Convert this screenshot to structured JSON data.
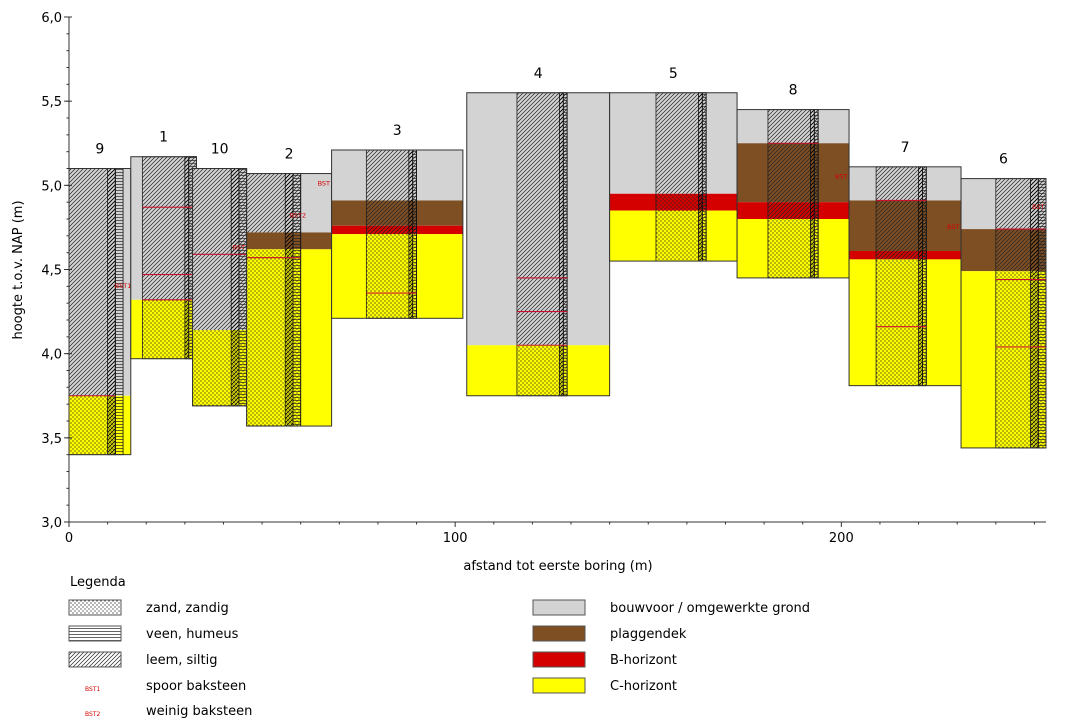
{
  "chart_data": {
    "type": "soil-profile",
    "xlabel": "afstand tot eerste boring (m)",
    "ylabel": "hoogte t.o.v. NAP (m)",
    "xlim": [
      0,
      253
    ],
    "ylim": [
      3.0,
      6.0
    ],
    "x_ticks": [
      0,
      100,
      200
    ],
    "x_tick_labels": [
      "0",
      "100",
      "200"
    ],
    "y_ticks": [
      3.0,
      3.5,
      4.0,
      4.5,
      5.0,
      5.5,
      6.0
    ],
    "y_tick_labels": [
      "3,0",
      "3,5",
      "4,0",
      "4,5",
      "5,0",
      "5,5",
      "6,0"
    ],
    "horizon_colors": {
      "bouwvoor": "#d3d3d3",
      "plaggendek": "#7f4f24",
      "B": "#d40000",
      "C": "#ffff00"
    },
    "borings": [
      {
        "label": "9",
        "bar": [
          0,
          16
        ],
        "core": [
          0,
          12
        ],
        "strips": [
          [
            10,
            12
          ],
          [
            12,
            14
          ]
        ],
        "layers": [
          {
            "h": "bouwvoor",
            "top": 5.1,
            "bottom": 3.75
          },
          {
            "h": "C",
            "top": 3.75,
            "bottom": 3.4
          }
        ],
        "texture": [
          {
            "t": "zand",
            "top": 3.75,
            "bottom": 3.4
          },
          {
            "t": "leem",
            "top": 5.1,
            "bottom": 3.75
          }
        ],
        "marks": [
          {
            "y": 3.75
          }
        ],
        "bst": [
          {
            "label": "BST1",
            "y": 4.39
          }
        ]
      },
      {
        "label": "1",
        "bar": [
          16,
          33
        ],
        "core": [
          19,
          33
        ],
        "strips": [
          [
            30,
            31
          ],
          [
            31,
            33
          ]
        ],
        "layers": [
          {
            "h": "bouwvoor",
            "top": 5.17,
            "bottom": 4.32
          },
          {
            "h": "C",
            "top": 4.32,
            "bottom": 3.97
          }
        ],
        "texture": [
          {
            "t": "zand",
            "top": 4.32,
            "bottom": 3.97
          },
          {
            "t": "leem",
            "top": 5.17,
            "bottom": 4.32
          }
        ],
        "marks": [
          {
            "y": 4.87
          },
          {
            "y": 4.47
          },
          {
            "y": 4.32
          }
        ],
        "bst": []
      },
      {
        "label": "10",
        "bar": [
          32,
          46
        ],
        "core": [
          32,
          46
        ],
        "strips": [
          [
            42,
            44
          ],
          [
            44,
            46
          ]
        ],
        "layers": [
          {
            "h": "bouwvoor",
            "top": 5.1,
            "bottom": 4.14
          },
          {
            "h": "C",
            "top": 4.14,
            "bottom": 3.69
          }
        ],
        "texture": [
          {
            "t": "zand",
            "top": 4.14,
            "bottom": 3.69
          },
          {
            "t": "leem",
            "top": 5.1,
            "bottom": 4.14
          }
        ],
        "marks": [
          {
            "y": 4.59
          }
        ],
        "bst": [
          {
            "label": "BST1",
            "y": 4.62
          }
        ]
      },
      {
        "label": "2",
        "bar": [
          46,
          68
        ],
        "core": [
          46,
          60
        ],
        "strips": [
          [
            56,
            58
          ],
          [
            58,
            60
          ]
        ],
        "layers": [
          {
            "h": "bouwvoor",
            "top": 5.07,
            "bottom": 4.72
          },
          {
            "h": "plaggendek",
            "top": 4.72,
            "bottom": 4.62
          },
          {
            "h": "C",
            "top": 4.62,
            "bottom": 3.57
          }
        ],
        "texture": [
          {
            "t": "zand",
            "top": 4.62,
            "bottom": 3.57
          },
          {
            "t": "leem",
            "top": 5.07,
            "bottom": 4.72
          }
        ],
        "marks": [
          {
            "y": 4.57
          }
        ],
        "bst": [
          {
            "label": "BST1",
            "y": 5.0
          },
          {
            "label": "BST2",
            "y": 4.81
          }
        ]
      },
      {
        "label": "3",
        "bar": [
          68,
          102
        ],
        "core": [
          77,
          90
        ],
        "strips": [
          [
            88,
            89
          ],
          [
            89,
            90
          ]
        ],
        "layers": [
          {
            "h": "bouwvoor",
            "top": 5.21,
            "bottom": 4.91
          },
          {
            "h": "plaggendek",
            "top": 4.91,
            "bottom": 4.76
          },
          {
            "h": "B",
            "top": 4.76,
            "bottom": 4.71
          },
          {
            "h": "C",
            "top": 4.71,
            "bottom": 4.21
          }
        ],
        "texture": [
          {
            "t": "zand",
            "top": 4.71,
            "bottom": 4.21
          },
          {
            "t": "leem",
            "top": 5.21,
            "bottom": 4.71
          }
        ],
        "marks": [
          {
            "y": 4.36
          }
        ],
        "bst": []
      },
      {
        "label": "4",
        "bar": [
          103,
          140
        ],
        "core": [
          116,
          129
        ],
        "strips": [
          [
            127,
            128
          ],
          [
            128,
            129
          ]
        ],
        "layers": [
          {
            "h": "bouwvoor",
            "top": 5.55,
            "bottom": 4.05
          },
          {
            "h": "C",
            "top": 4.05,
            "bottom": 3.75
          }
        ],
        "texture": [
          {
            "t": "zand",
            "top": 4.05,
            "bottom": 3.75
          },
          {
            "t": "leem",
            "top": 5.55,
            "bottom": 4.05
          }
        ],
        "marks": [
          {
            "y": 4.45
          },
          {
            "y": 4.25
          },
          {
            "y": 4.05
          }
        ],
        "bst": []
      },
      {
        "label": "5",
        "bar": [
          140,
          173
        ],
        "core": [
          152,
          165
        ],
        "strips": [
          [
            163,
            164
          ],
          [
            164,
            165
          ]
        ],
        "layers": [
          {
            "h": "bouwvoor",
            "top": 5.55,
            "bottom": 4.95
          },
          {
            "h": "B",
            "top": 4.95,
            "bottom": 4.85
          },
          {
            "h": "C",
            "top": 4.85,
            "bottom": 4.55
          }
        ],
        "texture": [
          {
            "t": "zand",
            "top": 4.95,
            "bottom": 4.55
          },
          {
            "t": "leem",
            "top": 5.55,
            "bottom": 4.95
          }
        ],
        "marks": [],
        "bst": []
      },
      {
        "label": "8",
        "bar": [
          173,
          202
        ],
        "core": [
          181,
          194
        ],
        "strips": [
          [
            192,
            193
          ],
          [
            193,
            194
          ]
        ],
        "layers": [
          {
            "h": "bouwvoor",
            "top": 5.45,
            "bottom": 5.25
          },
          {
            "h": "plaggendek",
            "top": 5.25,
            "bottom": 4.9
          },
          {
            "h": "B",
            "top": 4.9,
            "bottom": 4.8
          },
          {
            "h": "C",
            "top": 4.8,
            "bottom": 4.45
          }
        ],
        "texture": [
          {
            "t": "zand",
            "top": 4.8,
            "bottom": 4.45
          },
          {
            "t": "leem",
            "top": 5.45,
            "bottom": 4.8
          }
        ],
        "marks": [
          {
            "y": 5.25
          }
        ],
        "bst": [
          {
            "label": "BST2",
            "y": 5.04
          }
        ]
      },
      {
        "label": "7",
        "bar": [
          202,
          231
        ],
        "core": [
          209,
          222
        ],
        "strips": [
          [
            220,
            221
          ],
          [
            221,
            222
          ]
        ],
        "layers": [
          {
            "h": "bouwvoor",
            "top": 5.11,
            "bottom": 4.91
          },
          {
            "h": "plaggendek",
            "top": 4.91,
            "bottom": 4.61
          },
          {
            "h": "B",
            "top": 4.61,
            "bottom": 4.56
          },
          {
            "h": "C",
            "top": 4.56,
            "bottom": 3.81
          }
        ],
        "texture": [
          {
            "t": "zand",
            "top": 4.56,
            "bottom": 3.81
          },
          {
            "t": "leem",
            "top": 5.11,
            "bottom": 4.56
          }
        ],
        "marks": [
          {
            "y": 4.91
          },
          {
            "y": 4.16
          }
        ],
        "bst": [
          {
            "label": "BST2",
            "y": 4.74
          }
        ]
      },
      {
        "label": "6",
        "bar": [
          231,
          253
        ],
        "core": [
          240,
          253
        ],
        "strips": [
          [
            249,
            251
          ],
          [
            251,
            253
          ]
        ],
        "layers": [
          {
            "h": "bouwvoor",
            "top": 5.04,
            "bottom": 4.74
          },
          {
            "h": "plaggendek",
            "top": 4.74,
            "bottom": 4.49
          },
          {
            "h": "C",
            "top": 4.49,
            "bottom": 3.44
          }
        ],
        "texture": [
          {
            "t": "zand",
            "top": 4.49,
            "bottom": 3.44
          },
          {
            "t": "leem",
            "top": 5.04,
            "bottom": 4.49
          }
        ],
        "marks": [
          {
            "y": 4.74
          },
          {
            "y": 4.44
          },
          {
            "y": 4.04
          }
        ],
        "bst": [
          {
            "label": "BST",
            "y": 4.86
          }
        ]
      }
    ]
  },
  "legend": {
    "title": "Legenda",
    "items": [
      {
        "key": "zand",
        "label": "zand, zandig"
      },
      {
        "key": "veen",
        "label": "veen, humeus"
      },
      {
        "key": "leem",
        "label": "leem, siltig"
      },
      {
        "key": "bst1",
        "symbol": "BST1",
        "label": "spoor baksteen"
      },
      {
        "key": "bst2",
        "symbol": "BST2",
        "label": "weinig baksteen"
      },
      {
        "key": "bouwvoor",
        "label": "bouwvoor / omgewerkte grond"
      },
      {
        "key": "plaggendek",
        "label": "plaggendek"
      },
      {
        "key": "B",
        "label": "B-horizont"
      },
      {
        "key": "C",
        "label": "C-horizont"
      }
    ]
  }
}
